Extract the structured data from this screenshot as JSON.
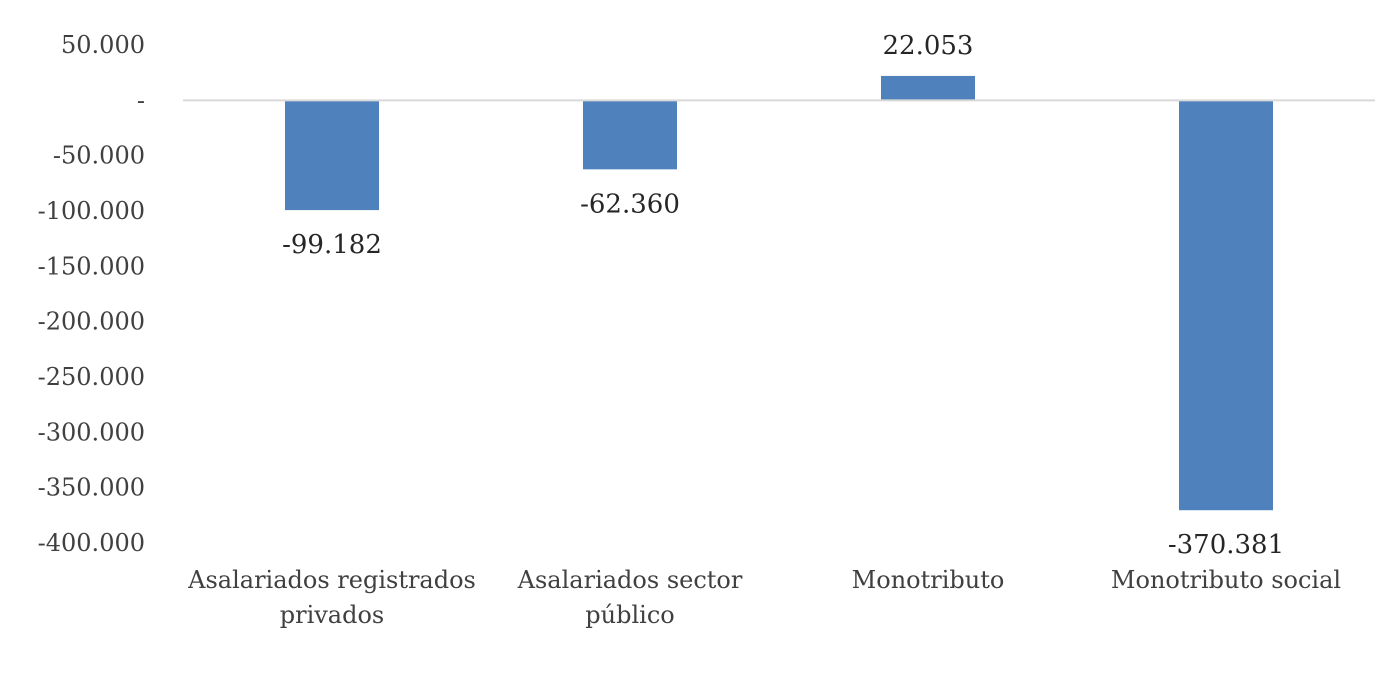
{
  "chart_data": {
    "type": "bar",
    "title": "",
    "xlabel": "",
    "ylabel": "",
    "categories": [
      [
        "Asalariados registrados",
        "privados"
      ],
      [
        "Asalariados sector",
        "público"
      ],
      [
        "Monotributo"
      ],
      [
        "Monotributo social"
      ]
    ],
    "values": [
      -99182,
      -62360,
      22053,
      -370381
    ],
    "value_labels": [
      "-99.182",
      "-62.360",
      "22.053",
      "-370.381"
    ],
    "ylim": [
      -400000,
      50000
    ],
    "yticks": [
      50000,
      0,
      -50000,
      -100000,
      -150000,
      -200000,
      -250000,
      -300000,
      -350000,
      -400000
    ],
    "ytick_labels": [
      "50.000",
      "-",
      "-50.000",
      "-100.000",
      "-150.000",
      "-200.000",
      "-250.000",
      "-300.000",
      "-350.000",
      "-400.000"
    ],
    "bar_color": "#4F81BD",
    "axis_color": "#D9D9D9",
    "grid": false,
    "legend": "none"
  }
}
